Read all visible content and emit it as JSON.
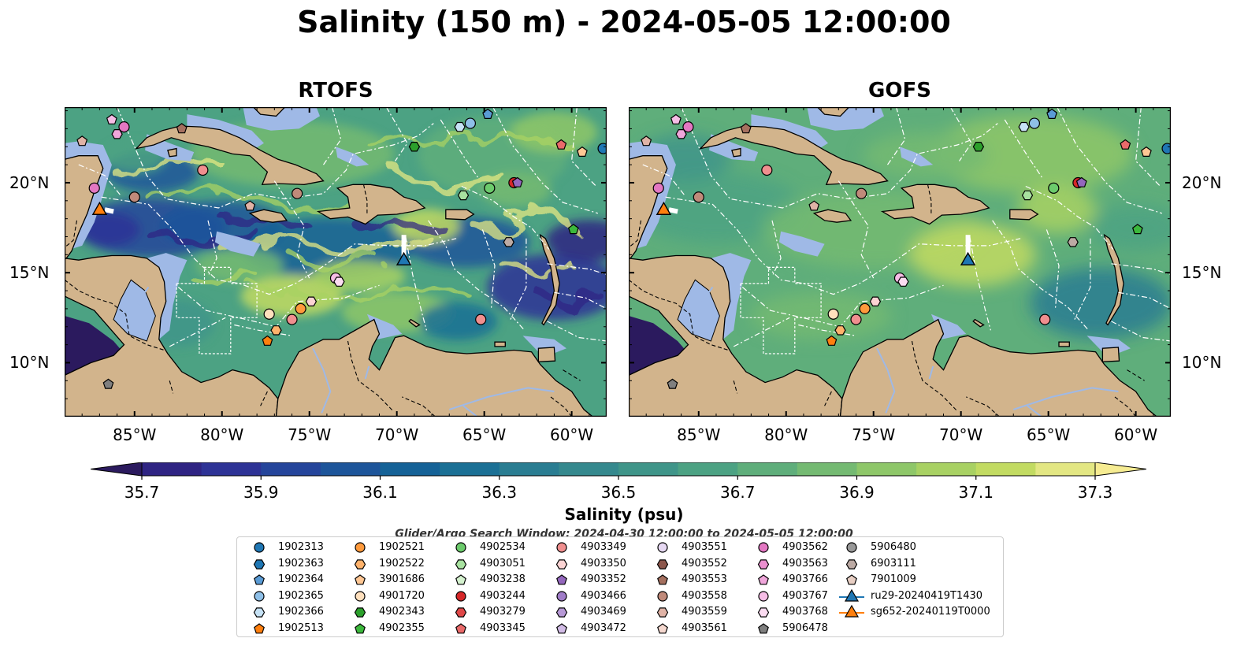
{
  "title": "Salinity (150 m) - 2024-05-05 12:00:00",
  "panels": [
    {
      "id": "rtofs",
      "title": "RTOFS"
    },
    {
      "id": "gofs",
      "title": "GOFS"
    }
  ],
  "map": {
    "lon_range": [
      -89,
      -58
    ],
    "lat_range": [
      7,
      24.2
    ],
    "lat_ticks": [
      "20°N",
      "15°N",
      "10°N"
    ],
    "lat_tick_values": [
      20,
      15,
      10
    ],
    "lon_ticks": [
      "85°W",
      "80°W",
      "75°W",
      "70°W",
      "65°W",
      "60°W"
    ],
    "lon_tick_values": [
      -85,
      -80,
      -75,
      -70,
      -65,
      -60
    ],
    "land_color": "#d2b48c",
    "shelf_color": "#9fb9e6",
    "deep_color": "#2b1a5e"
  },
  "colorbar": {
    "label": "Salinity (psu)",
    "ticks": [
      "35.7",
      "35.9",
      "36.1",
      "36.3",
      "36.5",
      "36.7",
      "36.9",
      "37.1",
      "37.3"
    ],
    "tick_values": [
      35.7,
      35.9,
      36.1,
      36.3,
      36.5,
      36.7,
      36.9,
      37.1,
      37.3
    ],
    "min": 35.7,
    "max": 37.3,
    "extend": "both",
    "colors": [
      "#2b1a5e",
      "#2f2483",
      "#2e3396",
      "#25459b",
      "#1d559a",
      "#156297",
      "#1b7095",
      "#2a7d92",
      "#35898e",
      "#3f9589",
      "#4ca283",
      "#5fae7b",
      "#74ba72",
      "#8ec769",
      "#a8d163",
      "#c2db62",
      "#e3e783",
      "#f6ec92"
    ]
  },
  "search_window": "Glider/Argo Search Window: 2024-04-30 12:00:00 to 2024-05-05 12:00:00",
  "legend": {
    "columns": [
      [
        {
          "label": "1902313",
          "marker": "circle",
          "color": "#1f77b4"
        },
        {
          "label": "1902363",
          "marker": "hexagon",
          "color": "#1f77b4"
        },
        {
          "label": "1902364",
          "marker": "pentagon",
          "color": "#5a9bd5"
        },
        {
          "label": "1902365",
          "marker": "circle",
          "color": "#8fc0e8"
        },
        {
          "label": "1902366",
          "marker": "hexagon",
          "color": "#c6e2f5"
        },
        {
          "label": "1902513",
          "marker": "pentagon",
          "color": "#ff7f0e"
        }
      ],
      [
        {
          "label": "1902521",
          "marker": "circle",
          "color": "#ff9a3c"
        },
        {
          "label": "1902522",
          "marker": "hexagon",
          "color": "#ffb26b"
        },
        {
          "label": "3901686",
          "marker": "pentagon",
          "color": "#ffc794"
        },
        {
          "label": "4901720",
          "marker": "circle",
          "color": "#ffe0bd"
        },
        {
          "label": "4902343",
          "marker": "hexagon",
          "color": "#2ca02c"
        },
        {
          "label": "4902355",
          "marker": "pentagon",
          "color": "#3cb83c"
        }
      ],
      [
        {
          "label": "4902534",
          "marker": "circle",
          "color": "#6ccb6c"
        },
        {
          "label": "4903051",
          "marker": "hexagon",
          "color": "#a8e2a0"
        },
        {
          "label": "4903238",
          "marker": "pentagon",
          "color": "#d5f2cf"
        },
        {
          "label": "4903244",
          "marker": "circle",
          "color": "#d62728"
        },
        {
          "label": "4903279",
          "marker": "hexagon",
          "color": "#e04848"
        },
        {
          "label": "4903345",
          "marker": "pentagon",
          "color": "#ea6a6a"
        }
      ],
      [
        {
          "label": "4903349",
          "marker": "circle",
          "color": "#f08f8f"
        },
        {
          "label": "4903350",
          "marker": "hexagon",
          "color": "#fbd3d3"
        },
        {
          "label": "4903352",
          "marker": "pentagon",
          "color": "#9467bd"
        },
        {
          "label": "4903466",
          "marker": "circle",
          "color": "#a07cc8"
        },
        {
          "label": "4903469",
          "marker": "hexagon",
          "color": "#b799d6"
        },
        {
          "label": "4903472",
          "marker": "pentagon",
          "color": "#d2bce6"
        }
      ],
      [
        {
          "label": "4903551",
          "marker": "circle",
          "color": "#e6d8f2"
        },
        {
          "label": "4903552",
          "marker": "hexagon",
          "color": "#8c564b"
        },
        {
          "label": "4903553",
          "marker": "pentagon",
          "color": "#a5705f"
        },
        {
          "label": "4903558",
          "marker": "circle",
          "color": "#c08a7a"
        },
        {
          "label": "4903559",
          "marker": "hexagon",
          "color": "#e0b3a6"
        },
        {
          "label": "4903561",
          "marker": "pentagon",
          "color": "#f5d8cf"
        }
      ],
      [
        {
          "label": "4903562",
          "marker": "circle",
          "color": "#e377c2"
        },
        {
          "label": "4903563",
          "marker": "hexagon",
          "color": "#ea8fcf"
        },
        {
          "label": "4903766",
          "marker": "pentagon",
          "color": "#f0a6db"
        },
        {
          "label": "4903767",
          "marker": "circle",
          "color": "#f6bde6"
        },
        {
          "label": "4903768",
          "marker": "hexagon",
          "color": "#fbdcf1"
        },
        {
          "label": "5906478",
          "marker": "pentagon",
          "color": "#7f7f7f"
        }
      ],
      [
        {
          "label": "5906480",
          "marker": "circle",
          "color": "#999999"
        },
        {
          "label": "6903111",
          "marker": "hexagon",
          "color": "#bcaaa4"
        },
        {
          "label": "7901009",
          "marker": "pentagon",
          "color": "#e8cfc4"
        },
        {
          "label": "ru29-20240419T1430",
          "marker": "triangle-line",
          "color": "#1f77b4"
        },
        {
          "label": "sg652-20240119T0000",
          "marker": "triangle-line",
          "color": "#ff7f0e"
        }
      ]
    ]
  },
  "floats": [
    {
      "lon": -86.3,
      "lat": 23.5,
      "marker": "pentagon",
      "color": "#f6bde6"
    },
    {
      "lon": -85.6,
      "lat": 23.1,
      "marker": "circle",
      "color": "#e377c2"
    },
    {
      "lon": -86.0,
      "lat": 22.7,
      "marker": "hexagon",
      "color": "#f0a6db"
    },
    {
      "lon": -82.3,
      "lat": 23.0,
      "marker": "pentagon",
      "color": "#a5705f"
    },
    {
      "lon": -88.0,
      "lat": 22.3,
      "marker": "pentagon",
      "color": "#e0b3a6"
    },
    {
      "lon": -87.3,
      "lat": 19.7,
      "marker": "circle",
      "color": "#e377c2"
    },
    {
      "lon": -85.0,
      "lat": 19.2,
      "marker": "circle",
      "color": "#c08a7a"
    },
    {
      "lon": -81.1,
      "lat": 20.7,
      "marker": "circle",
      "color": "#f08f8f"
    },
    {
      "lon": -78.4,
      "lat": 18.7,
      "marker": "pentagon",
      "color": "#e0b3a6"
    },
    {
      "lon": -75.7,
      "lat": 19.4,
      "marker": "circle",
      "color": "#c08a7a"
    },
    {
      "lon": -69.0,
      "lat": 22.0,
      "marker": "hexagon",
      "color": "#2ca02c"
    },
    {
      "lon": -66.4,
      "lat": 23.1,
      "marker": "hexagon",
      "color": "#c6e2f5"
    },
    {
      "lon": -65.8,
      "lat": 23.3,
      "marker": "circle",
      "color": "#8fc0e8"
    },
    {
      "lon": -64.8,
      "lat": 23.8,
      "marker": "pentagon",
      "color": "#5a9bd5"
    },
    {
      "lon": -66.2,
      "lat": 19.3,
      "marker": "hexagon",
      "color": "#a8e2a0"
    },
    {
      "lon": -64.7,
      "lat": 19.7,
      "marker": "circle",
      "color": "#6ccb6c"
    },
    {
      "lon": -63.3,
      "lat": 20.0,
      "marker": "circle",
      "color": "#d62728"
    },
    {
      "lon": -63.1,
      "lat": 20.0,
      "marker": "pentagon",
      "color": "#9467bd"
    },
    {
      "lon": -60.6,
      "lat": 22.1,
      "marker": "pentagon",
      "color": "#ea6a6a"
    },
    {
      "lon": -59.4,
      "lat": 21.7,
      "marker": "pentagon",
      "color": "#ffc794"
    },
    {
      "lon": -58.2,
      "lat": 21.9,
      "marker": "circle",
      "color": "#1f77b4"
    },
    {
      "lon": -59.9,
      "lat": 17.4,
      "marker": "pentagon",
      "color": "#3cb83c"
    },
    {
      "lon": -63.6,
      "lat": 16.7,
      "marker": "hexagon",
      "color": "#bcaaa4"
    },
    {
      "lon": -73.5,
      "lat": 14.7,
      "marker": "circle",
      "color": "#f6bde6"
    },
    {
      "lon": -73.3,
      "lat": 14.5,
      "marker": "hexagon",
      "color": "#fbdcf1"
    },
    {
      "lon": -74.9,
      "lat": 13.4,
      "marker": "hexagon",
      "color": "#fbd3d3"
    },
    {
      "lon": -75.5,
      "lat": 13.0,
      "marker": "circle",
      "color": "#ff9a3c"
    },
    {
      "lon": -77.3,
      "lat": 12.7,
      "marker": "circle",
      "color": "#ffe0bd"
    },
    {
      "lon": -76.0,
      "lat": 12.4,
      "marker": "circle",
      "color": "#f08f8f"
    },
    {
      "lon": -76.9,
      "lat": 11.8,
      "marker": "hexagon",
      "color": "#ffb26b"
    },
    {
      "lon": -77.4,
      "lat": 11.2,
      "marker": "pentagon",
      "color": "#ff7f0e"
    },
    {
      "lon": -65.2,
      "lat": 12.4,
      "marker": "circle",
      "color": "#f08f8f"
    },
    {
      "lon": -86.5,
      "lat": 8.8,
      "marker": "pentagon",
      "color": "#7f7f7f"
    }
  ],
  "gliders": [
    {
      "lon": -69.6,
      "lat": 15.7,
      "color": "#1f77b4",
      "track": [
        [
          -69.6,
          17.1
        ],
        [
          -69.6,
          15.8
        ]
      ]
    },
    {
      "lon": -87.0,
      "lat": 18.5,
      "color": "#ff7f0e",
      "track": [
        [
          -86.7,
          18.5
        ],
        [
          -86.2,
          18.4
        ]
      ]
    }
  ]
}
